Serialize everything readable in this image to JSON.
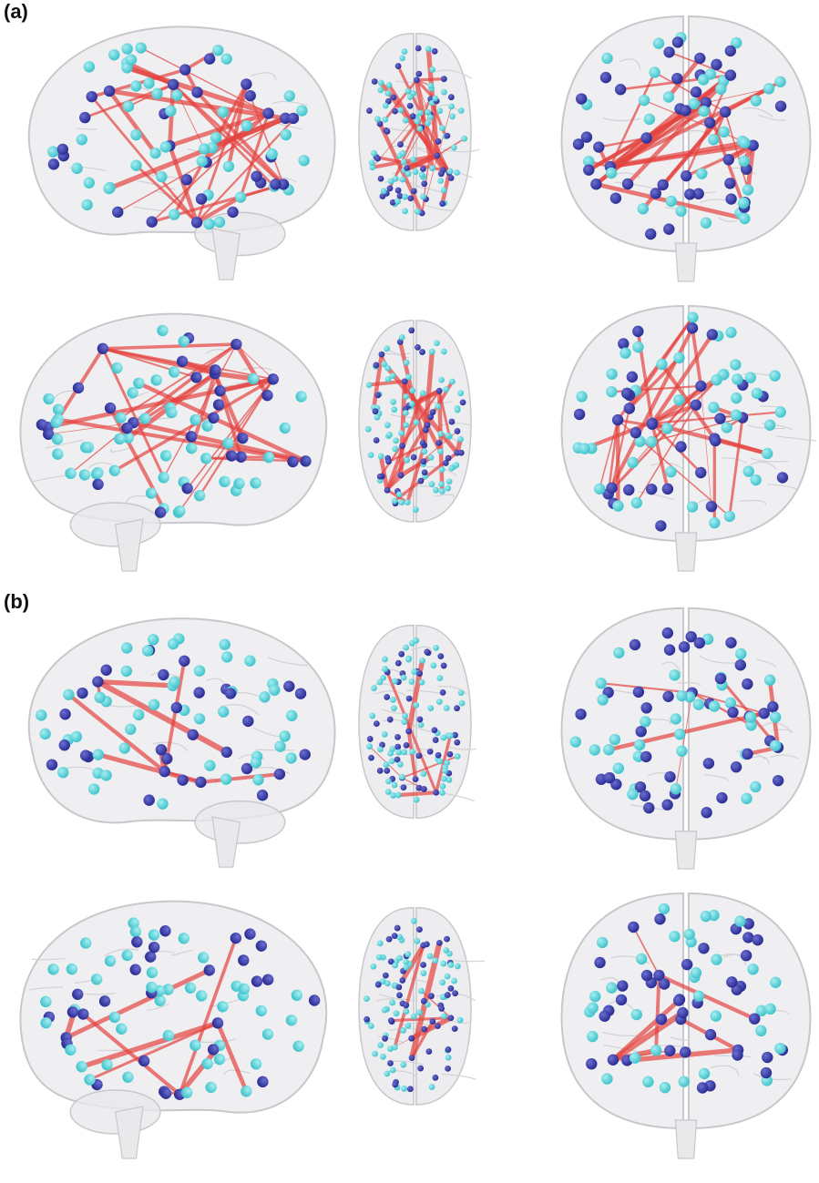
{
  "figure": {
    "labels": {
      "a": "(a)",
      "b": "(b)"
    },
    "colors": {
      "background": "#ffffff",
      "brain_fill": "#e9e9ec",
      "brain_stroke": "#c8c8cc",
      "node_dark": "#2b2d94",
      "node_light": "#43c4cc",
      "edge": "#e4433f"
    },
    "views": [
      "left-sagittal",
      "axial",
      "coronal",
      "right-sagittal",
      "axial",
      "coronal"
    ]
  }
}
